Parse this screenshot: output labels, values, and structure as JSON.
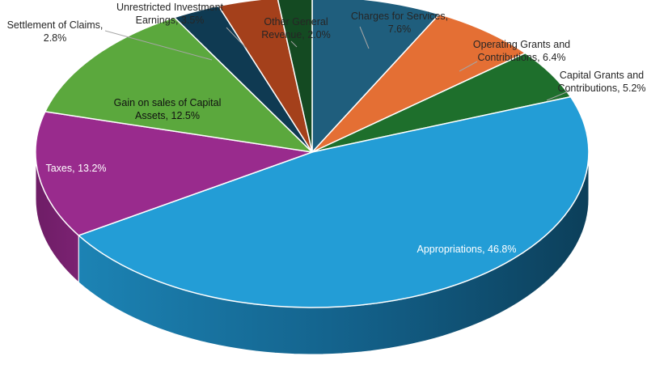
{
  "chart_data": {
    "type": "pie",
    "style": "3d",
    "title": "",
    "series": [
      {
        "name": "Charges for Services",
        "value": 7.6,
        "color": "#1f5e7d",
        "label_lines": [
          "Charges for Services,",
          "7.6%"
        ]
      },
      {
        "name": "Operating Grants and Contributions",
        "value": 6.4,
        "color": "#e46f34",
        "label_lines": [
          "Operating Grants and",
          "Contributions, 6.4%"
        ]
      },
      {
        "name": "Capital Grants and Contributions",
        "value": 5.2,
        "color": "#1e6f2c",
        "label_lines": [
          "Capital Grants and",
          "Contributions, 5.2%"
        ]
      },
      {
        "name": "Appropriations",
        "value": 46.8,
        "color": "#239dd6",
        "label_lines": [
          "Appropriations, 46.8%"
        ]
      },
      {
        "name": "Taxes",
        "value": 13.2,
        "color": "#992b8d",
        "label_lines": [
          "Taxes, 13.2%"
        ]
      },
      {
        "name": "Gain on sales of Capital Assets",
        "value": 12.5,
        "color": "#5ba83d",
        "label_lines": [
          "Gain on sales of Capital",
          "Assets, 12.5%"
        ]
      },
      {
        "name": "Settlement of Claims",
        "value": 2.8,
        "color": "#0f3a52",
        "label_lines": [
          "Settlement of Claims,",
          "2.8%"
        ]
      },
      {
        "name": "Unrestricted Investment Earnings",
        "value": 3.5,
        "color": "#a4401b",
        "label_lines": [
          "Unrestricted Investment",
          "Earnings, 3.5%"
        ]
      },
      {
        "name": "Other General Revenue",
        "value": 2.0,
        "color": "#144a22",
        "label_lines": [
          "Other General",
          "Revenue, 2.0%"
        ]
      }
    ]
  }
}
